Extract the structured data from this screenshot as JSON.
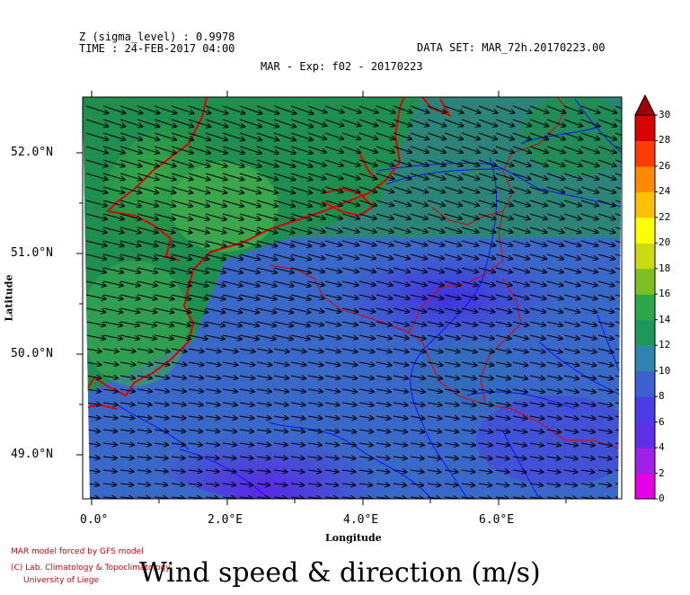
{
  "header": {
    "z_line": "Z (sigma_level) : 0.9978",
    "time_line": "TIME : 24-FEB-2017 04:00",
    "dataset_line": "DATA SET: MAR_72h.20170223.00",
    "title": "MAR - Exp: f02 - 20170223"
  },
  "map": {
    "lat_ticks": [
      "52.0°N",
      "51.0°N",
      "50.0°N",
      "49.0°N"
    ],
    "lon_ticks": [
      "0.0°",
      "2.0°E",
      "4.0°E",
      "6.0°E"
    ],
    "xlabel": "Longitude",
    "ylabel": "Latitude"
  },
  "colorbar": {
    "levels": [
      "0",
      "2",
      "4",
      "6",
      "8",
      "10",
      "12",
      "14",
      "16",
      "18",
      "20",
      "22",
      "24",
      "26",
      "28",
      "30"
    ],
    "colors": [
      "#e600e6",
      "#b400e6",
      "#7a1fe6",
      "#4a3ce6",
      "#3a5ad6",
      "#3c78c8",
      "#2f8fa0",
      "#1a9a5a",
      "#2aa84a",
      "#5ab830",
      "#9acd20",
      "#d8e010",
      "#ffff00",
      "#ffd000",
      "#ffa000",
      "#ff7000",
      "#ff3c00",
      "#e00000",
      "#c00000"
    ]
  },
  "footer": {
    "credit1": "MAR model forced by GFS model",
    "credit2": "(C) Lab. Climatology & Topoclimatology",
    "credit3": "University of Liege",
    "big_title": "Wind speed & direction (m/s)"
  }
}
